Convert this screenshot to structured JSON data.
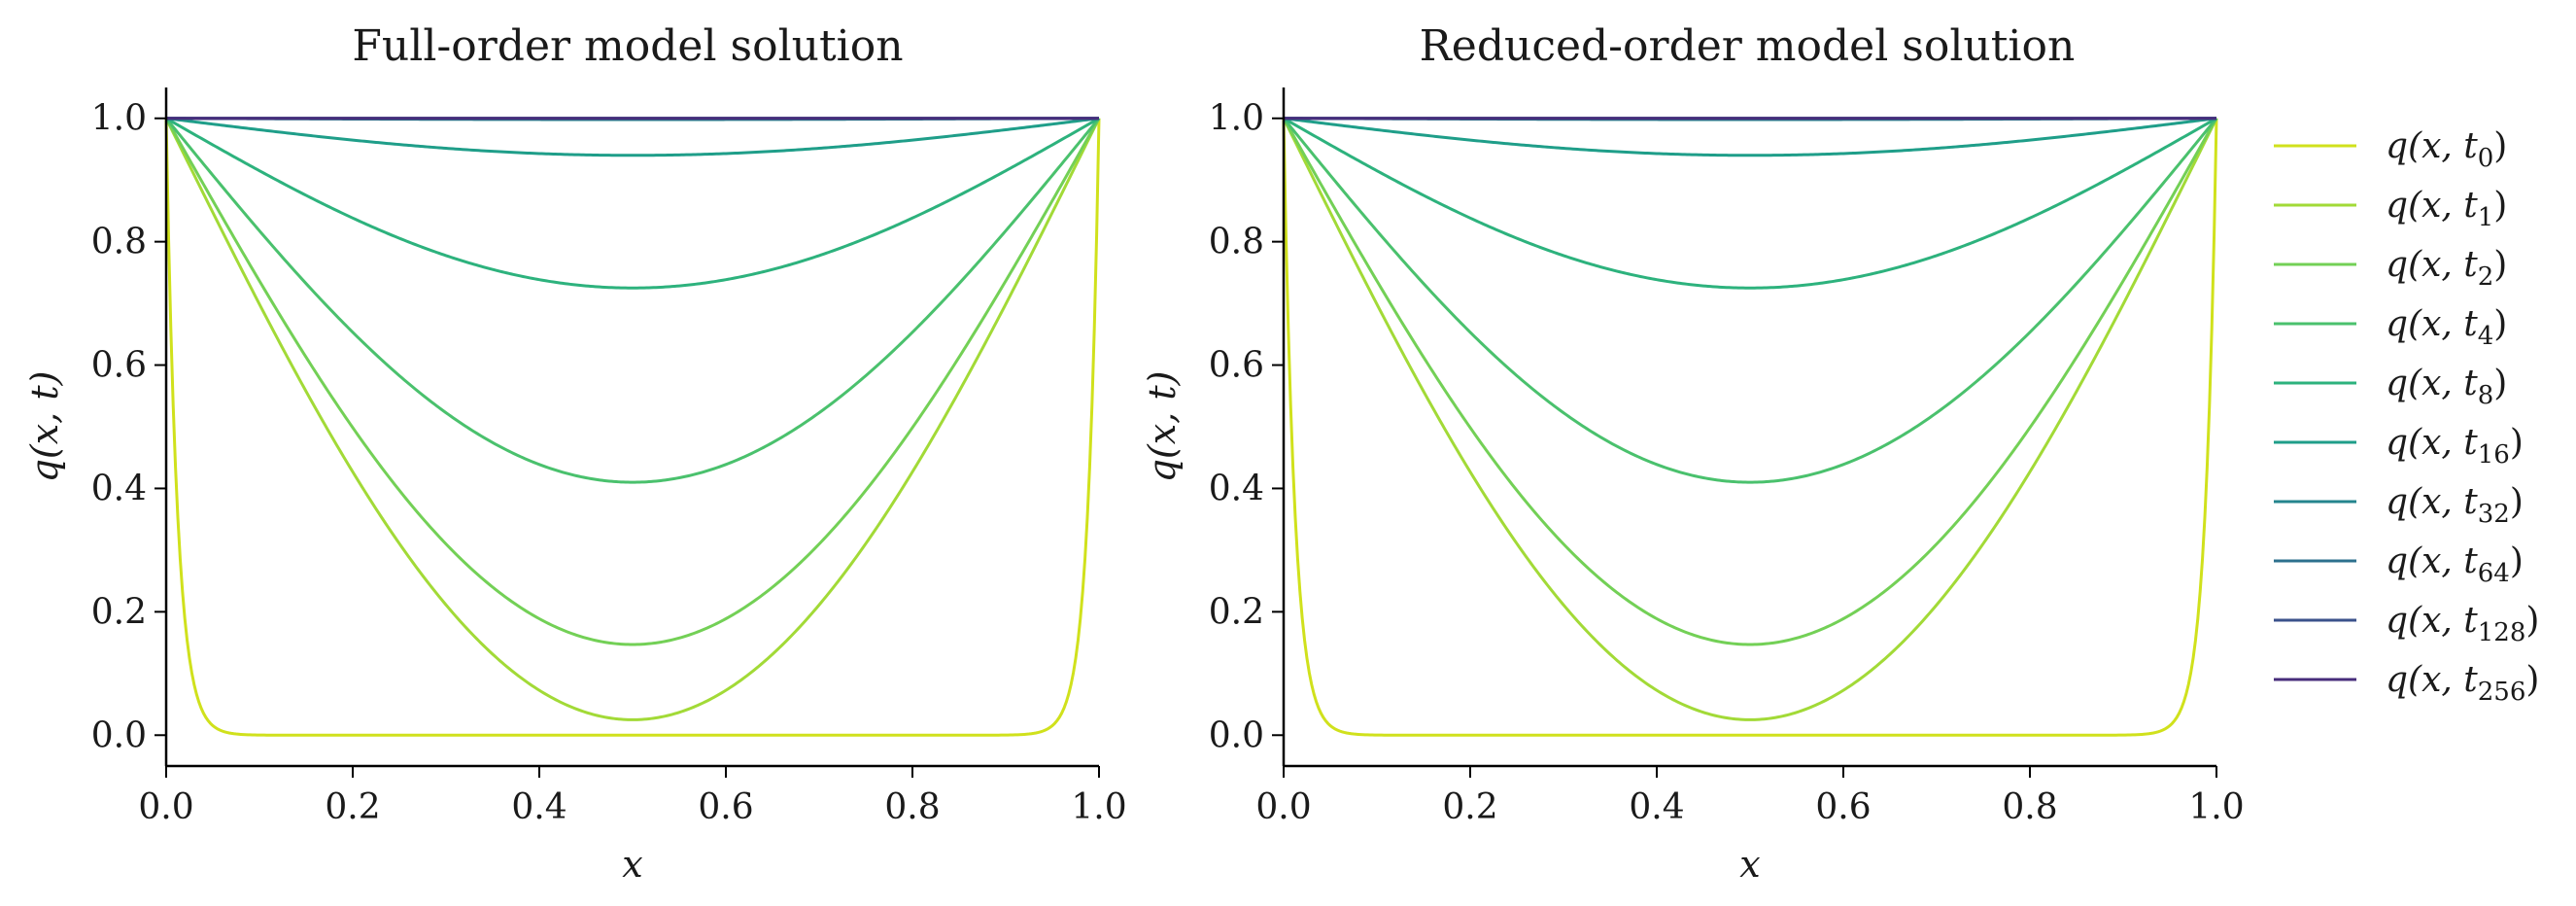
{
  "chart_data": [
    {
      "type": "line",
      "title": "Full-order model solution",
      "xlabel": "x",
      "ylabel": "q(x, t)",
      "xlim": [
        0.0,
        1.0
      ],
      "ylim": [
        -0.05,
        1.05
      ],
      "xticks": [
        "0.0",
        "0.2",
        "0.4",
        "0.6",
        "0.8",
        "1.0"
      ],
      "yticks": [
        "0.0",
        "0.2",
        "0.4",
        "0.6",
        "0.8",
        "1.0"
      ],
      "grid": false,
      "series": [
        {
          "name": "q(x, t_0)",
          "minimum_at_x_0_5": 0.0,
          "color": "#d0e11c"
        },
        {
          "name": "q(x, t_1)",
          "minimum_at_x_0_5": 0.025,
          "color": "#a2da37"
        },
        {
          "name": "q(x, t_2)",
          "minimum_at_x_0_5": 0.147,
          "color": "#73d056"
        },
        {
          "name": "q(x, t_4)",
          "minimum_at_x_0_5": 0.41,
          "color": "#4ac16d"
        },
        {
          "name": "q(x, t_8)",
          "minimum_at_x_0_5": 0.725,
          "color": "#2db27d"
        },
        {
          "name": "q(x, t_16)",
          "minimum_at_x_0_5": 0.94,
          "color": "#1f9e89"
        },
        {
          "name": "q(x, t_32)",
          "minimum_at_x_0_5": 0.998,
          "color": "#25858e"
        },
        {
          "name": "q(x, t_64)",
          "minimum_at_x_0_5": 1.0,
          "color": "#2d708e"
        },
        {
          "name": "q(x, t_128)",
          "minimum_at_x_0_5": 1.0,
          "color": "#3b528b"
        },
        {
          "name": "q(x, t_256)",
          "minimum_at_x_0_5": 1.0,
          "color": "#472d7b"
        }
      ]
    },
    {
      "type": "line",
      "title": "Reduced-order model solution",
      "xlabel": "x",
      "ylabel": "q(x, t)",
      "xlim": [
        0.0,
        1.0
      ],
      "ylim": [
        -0.05,
        1.05
      ],
      "xticks": [
        "0.0",
        "0.2",
        "0.4",
        "0.6",
        "0.8",
        "1.0"
      ],
      "yticks": [
        "0.0",
        "0.2",
        "0.4",
        "0.6",
        "0.8",
        "1.0"
      ],
      "grid": false,
      "series": [
        {
          "name": "q(x, t_0)",
          "minimum_at_x_0_5": 0.0,
          "color": "#d0e11c"
        },
        {
          "name": "q(x, t_1)",
          "minimum_at_x_0_5": 0.025,
          "color": "#a2da37"
        },
        {
          "name": "q(x, t_2)",
          "minimum_at_x_0_5": 0.147,
          "color": "#73d056"
        },
        {
          "name": "q(x, t_4)",
          "minimum_at_x_0_5": 0.41,
          "color": "#4ac16d"
        },
        {
          "name": "q(x, t_8)",
          "minimum_at_x_0_5": 0.725,
          "color": "#2db27d"
        },
        {
          "name": "q(x, t_16)",
          "minimum_at_x_0_5": 0.94,
          "color": "#1f9e89"
        },
        {
          "name": "q(x, t_32)",
          "minimum_at_x_0_5": 0.998,
          "color": "#25858e"
        },
        {
          "name": "q(x, t_64)",
          "minimum_at_x_0_5": 1.0,
          "color": "#2d708e"
        },
        {
          "name": "q(x, t_128)",
          "minimum_at_x_0_5": 1.0,
          "color": "#3b528b"
        },
        {
          "name": "q(x, t_256)",
          "minimum_at_x_0_5": 1.0,
          "color": "#472d7b"
        }
      ]
    }
  ],
  "legend": {
    "placement": "right",
    "entries": [
      {
        "base": "q(x, t",
        "sub": "0",
        "close": ")",
        "color": "#d0e11c"
      },
      {
        "base": "q(x, t",
        "sub": "1",
        "close": ")",
        "color": "#a2da37"
      },
      {
        "base": "q(x, t",
        "sub": "2",
        "close": ")",
        "color": "#73d056"
      },
      {
        "base": "q(x, t",
        "sub": "4",
        "close": ")",
        "color": "#4ac16d"
      },
      {
        "base": "q(x, t",
        "sub": "8",
        "close": ")",
        "color": "#2db27d"
      },
      {
        "base": "q(x, t",
        "sub": "16",
        "close": ")",
        "color": "#1f9e89"
      },
      {
        "base": "q(x, t",
        "sub": "32",
        "close": ")",
        "color": "#25858e"
      },
      {
        "base": "q(x, t",
        "sub": "64",
        "close": ")",
        "color": "#2d708e"
      },
      {
        "base": "q(x, t",
        "sub": "128",
        "close": ")",
        "color": "#3b528b"
      },
      {
        "base": "q(x, t",
        "sub": "256",
        "close": ")",
        "color": "#472d7b"
      }
    ]
  }
}
